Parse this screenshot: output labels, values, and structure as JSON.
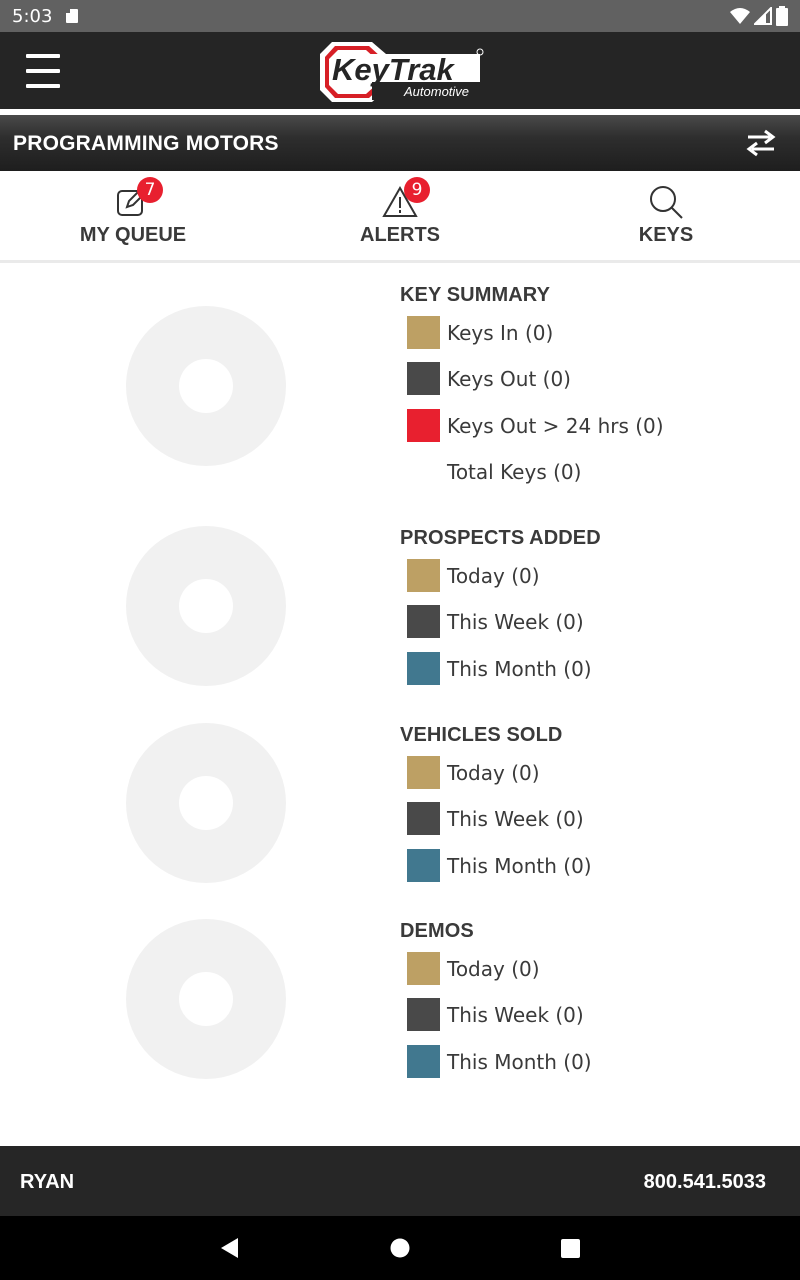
{
  "status_bar": {
    "time": "5:03"
  },
  "header": {
    "logo_text": "KeyTrak",
    "logo_subtext": "Automotive"
  },
  "location_bar": {
    "title": "PROGRAMMING MOTORS"
  },
  "tabs": [
    {
      "label": "MY QUEUE",
      "badge": "7",
      "icon": "edit-icon"
    },
    {
      "label": "ALERTS",
      "badge": "9",
      "icon": "warning-icon"
    },
    {
      "label": "KEYS",
      "badge": "",
      "icon": "search-icon"
    }
  ],
  "colors": {
    "tan": "#bda064",
    "dark_gray": "#494949",
    "red": "#e8202f",
    "teal": "#41788f",
    "donut_empty": "#f1f1f1",
    "badge_red": "#e8202f"
  },
  "sections": [
    {
      "title": "KEY SUMMARY",
      "items": [
        {
          "label": "Keys In (0)",
          "color": "#bda064"
        },
        {
          "label": "Keys Out (0)",
          "color": "#494949"
        },
        {
          "label": "Keys Out > 24 hrs (0)",
          "color": "#e8202f"
        },
        {
          "label": "Total Keys (0)",
          "color": ""
        }
      ]
    },
    {
      "title": "PROSPECTS ADDED",
      "items": [
        {
          "label": "Today (0)",
          "color": "#bda064"
        },
        {
          "label": "This Week (0)",
          "color": "#494949"
        },
        {
          "label": "This Month (0)",
          "color": "#41788f"
        }
      ]
    },
    {
      "title": "VEHICLES SOLD",
      "items": [
        {
          "label": "Today (0)",
          "color": "#bda064"
        },
        {
          "label": "This Week (0)",
          "color": "#494949"
        },
        {
          "label": "This Month (0)",
          "color": "#41788f"
        }
      ]
    },
    {
      "title": "DEMOS",
      "items": [
        {
          "label": "Today (0)",
          "color": "#bda064"
        },
        {
          "label": "This Week (0)",
          "color": "#494949"
        },
        {
          "label": "This Month (0)",
          "color": "#41788f"
        }
      ]
    }
  ],
  "footer": {
    "user": "RYAN",
    "phone": "800.541.5033"
  }
}
